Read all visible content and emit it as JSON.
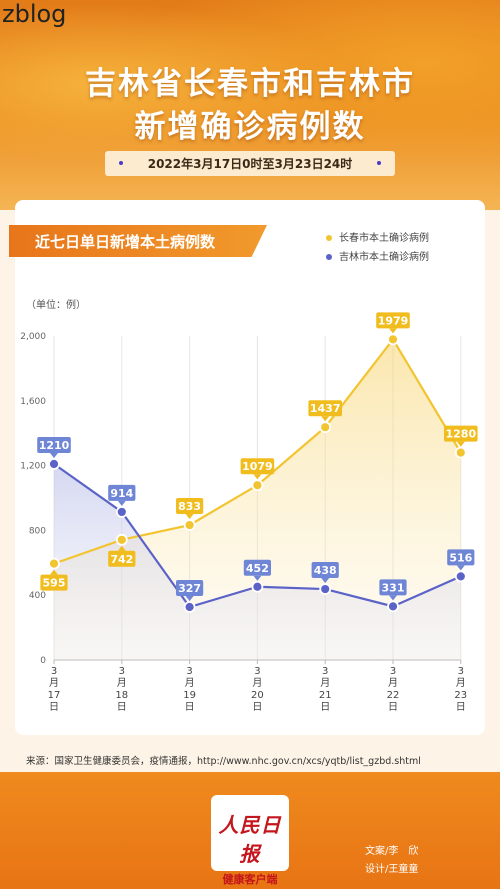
{
  "watermark": "zblog",
  "header": {
    "title_line1": "吉林省长春市和吉林市",
    "title_line2": "新增确诊病例数",
    "date_range": "2022年3月17日0时至3月23日24时"
  },
  "card": {
    "section_title": "近七日单日新增本土病例数",
    "unit_label": "（单位：例）"
  },
  "source_text": "来源：国家卫生健康委员会，疫情通报，http://www.nhc.gov.cn/xcs/yqtb/list_gzbd.shtml",
  "logo": {
    "line1": "人民日报",
    "line2": "健康客户端"
  },
  "credits": {
    "writer": "文案/李　欣",
    "designer": "设计/王童童"
  },
  "colors": {
    "changchun": "#f2c430",
    "jilin": "#5b62c8",
    "accent": "#e8751a"
  },
  "chart_data": {
    "type": "line",
    "categories": [
      [
        "3",
        "月",
        "17",
        "日"
      ],
      [
        "3",
        "月",
        "18",
        "日"
      ],
      [
        "3",
        "月",
        "19",
        "日"
      ],
      [
        "3",
        "月",
        "20",
        "日"
      ],
      [
        "3",
        "月",
        "21",
        "日"
      ],
      [
        "3",
        "月",
        "22",
        "日"
      ],
      [
        "3",
        "月",
        "23",
        "日"
      ]
    ],
    "series": [
      {
        "name": "长春市本土确诊病例",
        "values": [
          595,
          742,
          833,
          1079,
          1437,
          1979,
          1280
        ]
      },
      {
        "name": "吉林市本土确诊病例",
        "values": [
          1210,
          914,
          327,
          452,
          438,
          331,
          516
        ]
      }
    ],
    "y_ticks": [
      "0",
      "400",
      "800",
      "1,200",
      "1,600",
      "2,000"
    ],
    "ylim": [
      0,
      2000
    ],
    "grid": "vertical",
    "legend_position": "top-right"
  }
}
